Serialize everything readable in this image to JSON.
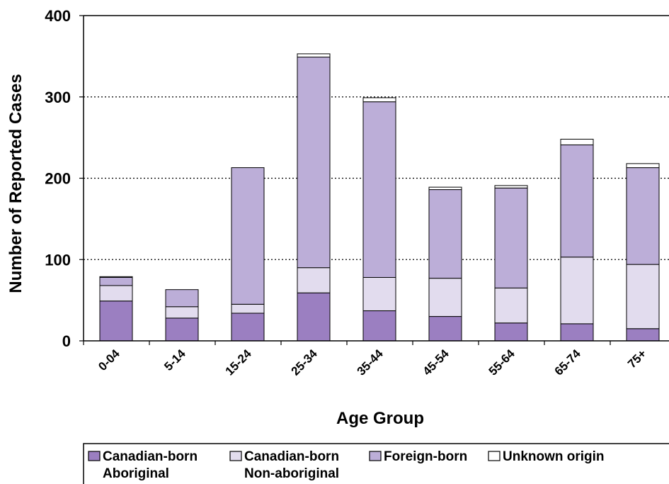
{
  "chart_data": {
    "type": "bar",
    "stacked": true,
    "xlabel": "Age Group",
    "ylabel": "Number of Reported Cases",
    "ylim": [
      0,
      400
    ],
    "yticks": [
      0,
      100,
      200,
      300,
      400
    ],
    "grid": "horizontal dotted",
    "legend_position": "bottom",
    "categories": [
      "0-04",
      "5-14",
      "15-24",
      "25-34",
      "35-44",
      "45-54",
      "55-64",
      "65-74",
      "75+"
    ],
    "series": [
      {
        "name": "Canadian-born Aboriginal",
        "color": "#9b7fc1",
        "values": [
          49,
          28,
          34,
          59,
          37,
          30,
          22,
          21,
          15
        ]
      },
      {
        "name": "Canadian-born Non-aboriginal",
        "color": "#e2dcee",
        "values": [
          19,
          14,
          11,
          31,
          41,
          47,
          43,
          82,
          79
        ]
      },
      {
        "name": "Foreign-born",
        "color": "#bcaed8",
        "values": [
          10,
          21,
          168,
          259,
          216,
          109,
          123,
          138,
          119
        ]
      },
      {
        "name": "Unknown origin",
        "color": "#ffffff",
        "values": [
          1,
          0,
          0,
          4,
          5,
          3,
          3,
          7,
          5
        ]
      }
    ]
  },
  "legend": {
    "items": [
      {
        "line1": "Canadian-born",
        "line2": "Aboriginal"
      },
      {
        "line1": "Canadian-born",
        "line2": "Non-aboriginal"
      },
      {
        "line1": "Foreign-born",
        "line2": ""
      },
      {
        "line1": "Unknown origin",
        "line2": ""
      }
    ]
  }
}
